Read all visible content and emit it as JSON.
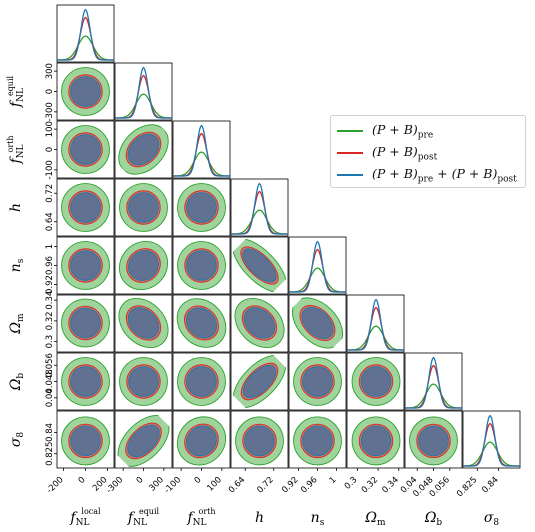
{
  "chart_data": {
    "type": "corner",
    "params": [
      {
        "key": "fNL_local",
        "label_main": "f",
        "label_sub": "NL",
        "label_sup": "local",
        "ticks": [
          -200,
          0,
          200
        ],
        "range": [
          -260,
          260
        ],
        "mean": 0
      },
      {
        "key": "fNL_equil",
        "label_main": "f",
        "label_sub": "NL",
        "label_sup": "equil",
        "ticks": [
          -300,
          0,
          300
        ],
        "range": [
          -420,
          420
        ],
        "mean": 0
      },
      {
        "key": "fNL_orth",
        "label_main": "f",
        "label_sub": "NL",
        "label_sup": "orth",
        "ticks": [
          -100,
          0,
          100
        ],
        "range": [
          -140,
          140
        ],
        "mean": 0
      },
      {
        "key": "h",
        "label_main": "h",
        "label_sub": "",
        "label_sup": "",
        "ticks": [
          0.64,
          0.72
        ],
        "range": [
          0.6,
          0.76
        ],
        "mean": 0.68
      },
      {
        "key": "n_s",
        "label_main": "n",
        "label_sub": "s",
        "label_sup": "",
        "ticks": [
          0.92,
          0.96,
          1.0
        ],
        "range": [
          0.9,
          1.02
        ],
        "mean": 0.96
      },
      {
        "key": "Omega_m",
        "label_main": "Ω",
        "label_sub": "m",
        "label_sup": "",
        "ticks": [
          0.3,
          0.32,
          0.34
        ],
        "range": [
          0.29,
          0.345
        ],
        "mean": 0.318
      },
      {
        "key": "Omega_b",
        "label_main": "Ω",
        "label_sub": "b",
        "label_sup": "",
        "ticks": [
          0.04,
          0.048,
          0.056
        ],
        "range": [
          0.034,
          0.062
        ],
        "mean": 0.048
      },
      {
        "key": "sigma_8",
        "label_main": "σ",
        "label_sub": "8",
        "label_sup": "",
        "ticks": [
          0.825,
          0.84
        ],
        "range": [
          0.815,
          0.855
        ],
        "mean": 0.834
      }
    ],
    "series": [
      {
        "name": "(P + B)pre",
        "legend_main": "(P + B)",
        "legend_sub": "pre",
        "color": "#2ca02c",
        "fill": "#9fd49c",
        "width_factor": 1.0,
        "peak_height": 0.45
      },
      {
        "name": "(P + B)post",
        "legend_main": "(P + B)",
        "legend_sub": "post",
        "color": "#d62728",
        "fill": "#c97a5e",
        "width_factor": 0.7,
        "peak_height": 0.8
      },
      {
        "name": "(P + B)pre + (P + B)post",
        "legend_main": "(P + B)",
        "legend_sub": "pre",
        "legend_main2": " + (P + B)",
        "legend_sub2": "post",
        "color": "#1f77b4",
        "fill": "#607192",
        "width_factor": 0.62,
        "peak_height": 0.95
      }
    ],
    "correlations": {
      "1-0": 0.0,
      "2-0": 0.0,
      "2-1": 0.35,
      "3-0": 0.0,
      "3-1": 0.0,
      "3-2": 0.0,
      "4-0": 0.0,
      "4-1": 0.1,
      "4-2": 0.0,
      "4-3": -0.8,
      "5-0": 0.0,
      "5-1": -0.3,
      "5-2": -0.2,
      "5-3": -0.3,
      "5-4": -0.45,
      "6-0": 0.0,
      "6-1": 0.0,
      "6-2": 0.0,
      "6-3": 0.7,
      "6-4": 0.0,
      "6-5": 0.0,
      "7-0": 0.0,
      "7-1": 0.55,
      "7-2": 0.1,
      "7-3": 0.0,
      "7-4": 0.0,
      "7-5": 0.0,
      "7-6": 0.0
    },
    "legend_position": "upper-right"
  }
}
